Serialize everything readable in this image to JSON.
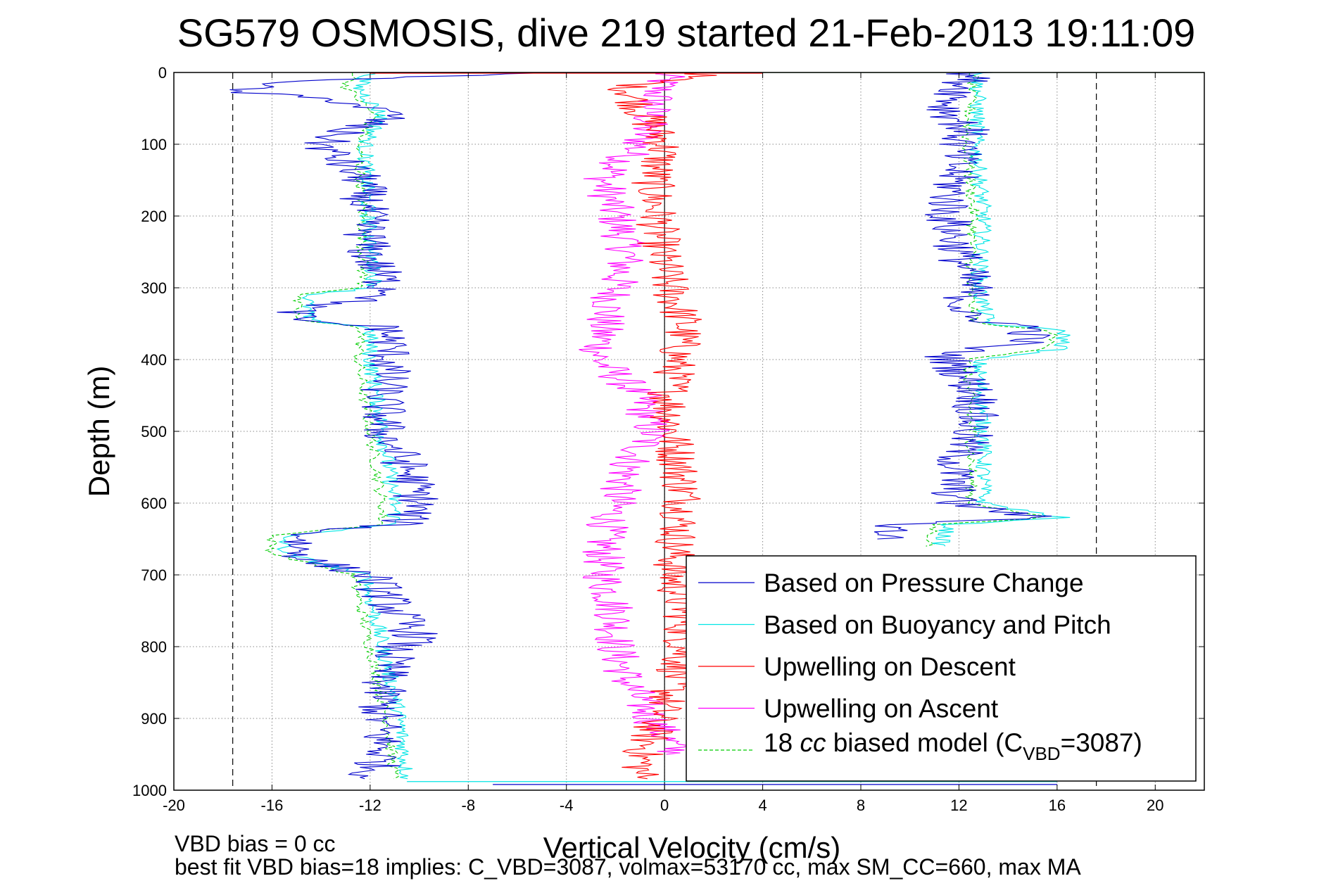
{
  "chart_data": {
    "type": "line",
    "title": "SG579 OSMOSIS, dive 219 started 21-Feb-2013 19:11:09",
    "xlabel": "Vertical Velocity (cm/s)",
    "ylabel": "Depth (m)",
    "xlim": [
      -20,
      22
    ],
    "ylim": [
      0,
      1000
    ],
    "y_reversed": true,
    "grid": true,
    "legend_position": "bottom-right",
    "x_ticks": [
      "-20",
      "-16",
      "-12",
      "-8",
      "-4",
      "0",
      "4",
      "8",
      "12",
      "16",
      "20"
    ],
    "y_ticks": [
      "0",
      "100",
      "200",
      "300",
      "400",
      "500",
      "600",
      "700",
      "800",
      "900",
      "1000"
    ],
    "dashed_limits": [
      -17.6,
      17.6
    ],
    "notes": {
      "line1": "VBD bias = 0 cc",
      "line2": "best fit VBD bias=18 implies: C_VBD=3087, volmax=53170 cc, max SM_CC=660, max MA"
    },
    "series": [
      {
        "name": "Based on Pressure Change",
        "color": "#0000cc",
        "descent": {
          "depth": [
            0,
            10,
            25,
            40,
            60,
            80,
            100,
            150,
            200,
            250,
            300,
            310,
            330,
            345,
            355,
            400,
            450,
            500,
            550,
            600,
            630,
            640,
            660,
            680,
            700,
            750,
            790,
            800,
            850,
            900,
            950,
            985
          ],
          "velocity": [
            -4,
            -14,
            -18,
            -13,
            -11,
            -13,
            -14,
            -12.3,
            -12.2,
            -12.1,
            -11.3,
            -11,
            -15,
            -15,
            -11.3,
            -11.2,
            -11.5,
            -11.5,
            -10.5,
            -10,
            -10.8,
            -14.5,
            -15,
            -14.5,
            -12,
            -11,
            -10,
            -11,
            -11.5,
            -11.6,
            -11.5,
            -12
          ]
        },
        "ascent": {
          "depth": [
            0,
            20,
            50,
            80,
            100,
            150,
            200,
            250,
            300,
            340,
            355,
            375,
            385,
            395,
            450,
            500,
            550,
            600,
            620,
            630,
            650
          ],
          "velocity": [
            12.5,
            12.2,
            11.5,
            12.3,
            12,
            11.8,
            11.5,
            12,
            12.5,
            12,
            15,
            14.8,
            12.5,
            11.5,
            12.8,
            12.5,
            11.8,
            11.8,
            15.2,
            9.5,
            9
          ]
        }
      },
      {
        "name": "Based on Buoyancy and Pitch",
        "color": "#00e5e5",
        "descent": {
          "depth": [
            0,
            20,
            60,
            100,
            200,
            300,
            310,
            345,
            355,
            400,
            500,
            600,
            630,
            645,
            670,
            700,
            800,
            900,
            985
          ],
          "velocity": [
            -12,
            -12.5,
            -11.5,
            -12.2,
            -12.1,
            -11.8,
            -14.5,
            -14.6,
            -12,
            -12,
            -11.5,
            -11,
            -11,
            -15.5,
            -15.5,
            -12.2,
            -11.5,
            -10.8,
            -10.5
          ]
        },
        "ascent": {
          "depth": [
            0,
            100,
            200,
            300,
            350,
            360,
            385,
            400,
            500,
            600,
            620,
            630,
            660
          ],
          "velocity": [
            12.8,
            12.7,
            13,
            12.8,
            13.2,
            16.3,
            16.2,
            12.8,
            13,
            13,
            16.2,
            11.6,
            11.2
          ]
        }
      },
      {
        "name": "Upwelling on Descent",
        "color": "#ff0000",
        "depth": [
          0,
          20,
          50,
          100,
          150,
          200,
          250,
          300,
          350,
          400,
          450,
          500,
          550,
          600,
          650,
          700,
          750,
          800,
          850,
          900,
          950,
          985
        ],
        "velocity": [
          2,
          -1.5,
          -1,
          0,
          -0.5,
          -0.3,
          -0.2,
          0.2,
          0.8,
          0.5,
          0.2,
          0.3,
          0.6,
          0.8,
          0.5,
          0.3,
          0.8,
          0.8,
          0.4,
          -0.3,
          -0.9,
          -1
        ]
      },
      {
        "name": "Upwelling on Ascent",
        "color": "#ff00ff",
        "depth": [
          0,
          50,
          100,
          150,
          200,
          250,
          300,
          350,
          400,
          450,
          500,
          550,
          600,
          650,
          700,
          750,
          800,
          850,
          900,
          950
        ],
        "velocity": [
          0,
          -0.5,
          -1,
          -2.5,
          -2,
          -1.5,
          -2,
          -2.5,
          -2.7,
          -1,
          -0.5,
          -1.5,
          -2,
          -2.5,
          -2.5,
          -2,
          -2,
          -1.5,
          -0.5,
          0.5
        ]
      },
      {
        "name": "18 cc biased model",
        "label_suffix_main": "=3087)",
        "label_prefix": "18",
        "label_italic": "cc",
        "label_rest": " biased model (C",
        "label_subscript": "VBD",
        "color": "#00cc00",
        "dashed": true,
        "descent": {
          "depth": [
            0,
            20,
            60,
            100,
            200,
            300,
            310,
            345,
            355,
            400,
            500,
            600,
            630,
            645,
            670,
            700,
            800,
            900,
            985
          ],
          "velocity": [
            -12.5,
            -13,
            -11.8,
            -12.5,
            -12.3,
            -12.3,
            -15,
            -15,
            -12.3,
            -12.5,
            -12,
            -11.5,
            -11.5,
            -16,
            -16,
            -12.7,
            -12,
            -11.3,
            -11
          ]
        },
        "ascent": {
          "depth": [
            0,
            100,
            200,
            300,
            350,
            360,
            385,
            400,
            500,
            600,
            620,
            630,
            660
          ],
          "velocity": [
            12.6,
            12.3,
            12.6,
            12.4,
            12.7,
            15.8,
            15.7,
            12.3,
            12.5,
            12.5,
            15.6,
            11,
            10.8
          ]
        }
      }
    ]
  }
}
